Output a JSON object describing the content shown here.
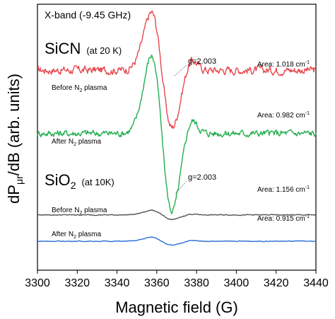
{
  "chart_data": {
    "type": "line",
    "xlabel": "Magnetic field (G)",
    "ylabel": {
      "main": "dP",
      "sub": "μr",
      "rest": "/dB (arb. units)"
    },
    "x_ticks": [
      3300,
      3320,
      3340,
      3360,
      3380,
      3400,
      3420,
      3440
    ],
    "xlim": [
      3300,
      3440
    ],
    "y_scale": "arbitrary units, stacked offset traces, no y tick labels",
    "grid": false,
    "annotations": {
      "band": "X-band (-9.45 GHz)",
      "sicn_main": "SiCN",
      "sicn_cond": "(at 20 K)",
      "sio2_main": "SiO",
      "sio2_sub": "2",
      "sio2_cond": "(at 10K)",
      "g_sicn": "g=2.003",
      "g_sio2": "g=2.003"
    },
    "series": [
      {
        "name": "Before N2 plasma",
        "label_main": "Before N",
        "label_sub": "2",
        "label_rest": " plasma",
        "sample": "SiCN",
        "color": "#e8474d",
        "area_text": "Area: 1.018 cm",
        "area_sup": "-1",
        "baseline": 0.9,
        "amp": 1.0,
        "noise": 0.14
      },
      {
        "name": "After N2 plasma",
        "label_main": "After N",
        "label_sub": "2",
        "label_rest": " plasma",
        "sample": "SiCN",
        "color": "#22ae4e",
        "area_text": "Area: 0.982 cm",
        "area_sup": "-1",
        "baseline": -0.3,
        "amp": 1.35,
        "noise": 0.12
      },
      {
        "name": "Before N2 plasma",
        "label_main": "Before N",
        "label_sub": "2",
        "label_rest": " plasma",
        "sample": "SiO2",
        "color": "#555555",
        "area_text": "Area: 1.156 cm",
        "area_sup": "-1",
        "baseline": -1.85,
        "amp": 0.08,
        "noise": 0.015
      },
      {
        "name": "After N2 plasma",
        "label_main": "After N",
        "label_sub": "2",
        "label_rest": " plasma",
        "sample": "SiO2",
        "color": "#2a6fd4",
        "area_text": "Area: 0.915 cm",
        "area_sup": "-1",
        "baseline": -2.35,
        "amp": 0.07,
        "noise": 0.012
      }
    ],
    "line_shape": {
      "center": 3362.5,
      "pos_peak": 3357.5,
      "neg_peak": 3369.5,
      "tail": 3377
    },
    "ylim": [
      -2.9,
      2.15
    ]
  }
}
